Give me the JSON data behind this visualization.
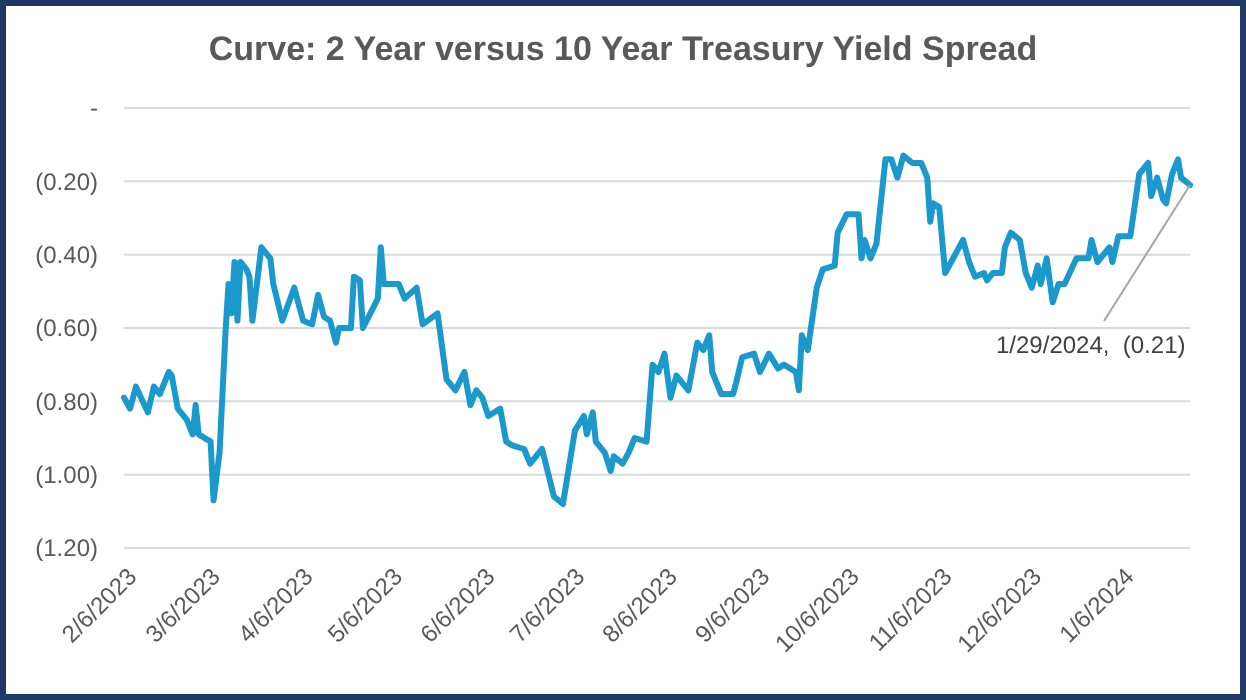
{
  "chart_data": {
    "type": "line",
    "title": "Curve: 2 Year versus 10 Year Treasury Yield Spread",
    "x": [
      "2023-02-06",
      "2023-02-08",
      "2023-02-10",
      "2023-02-14",
      "2023-02-16",
      "2023-02-18",
      "2023-02-21",
      "2023-02-22",
      "2023-02-24",
      "2023-02-27",
      "2023-03-01",
      "2023-03-02",
      "2023-03-03",
      "2023-03-07",
      "2023-03-08",
      "2023-03-10",
      "2023-03-12",
      "2023-03-13",
      "2023-03-14",
      "2023-03-15",
      "2023-03-16",
      "2023-03-17",
      "2023-03-19",
      "2023-03-20",
      "2023-03-21",
      "2023-03-24",
      "2023-03-27",
      "2023-03-28",
      "2023-03-31",
      "2023-04-04",
      "2023-04-07",
      "2023-04-10",
      "2023-04-12",
      "2023-04-14",
      "2023-04-16",
      "2023-04-18",
      "2023-04-19",
      "2023-04-23",
      "2023-04-24",
      "2023-04-26",
      "2023-04-27",
      "2023-05-02",
      "2023-05-03",
      "2023-05-04",
      "2023-05-09",
      "2023-05-11",
      "2023-05-15",
      "2023-05-17",
      "2023-05-22",
      "2023-05-25",
      "2023-05-28",
      "2023-05-31",
      "2023-06-02",
      "2023-06-04",
      "2023-06-06",
      "2023-06-08",
      "2023-06-12",
      "2023-06-14",
      "2023-06-16",
      "2023-06-20",
      "2023-06-22",
      "2023-06-26",
      "2023-06-30",
      "2023-07-03",
      "2023-07-07",
      "2023-07-10",
      "2023-07-11",
      "2023-07-13",
      "2023-07-14",
      "2023-07-17",
      "2023-07-19",
      "2023-07-20",
      "2023-07-23",
      "2023-07-25",
      "2023-07-27",
      "2023-07-31",
      "2023-08-02",
      "2023-08-04",
      "2023-08-06",
      "2023-08-08",
      "2023-08-10",
      "2023-08-14",
      "2023-08-17",
      "2023-08-19",
      "2023-08-21",
      "2023-08-22",
      "2023-08-25",
      "2023-08-29",
      "2023-08-30",
      "2023-09-01",
      "2023-09-05",
      "2023-09-07",
      "2023-09-10",
      "2023-09-13",
      "2023-09-15",
      "2023-09-19",
      "2023-09-20",
      "2023-09-21",
      "2023-09-23",
      "2023-09-26",
      "2023-09-28",
      "2023-10-02",
      "2023-10-03",
      "2023-10-06",
      "2023-10-10",
      "2023-10-11",
      "2023-10-12",
      "2023-10-14",
      "2023-10-16",
      "2023-10-19",
      "2023-10-21",
      "2023-10-23",
      "2023-10-25",
      "2023-10-28",
      "2023-10-31",
      "2023-11-02",
      "2023-11-03",
      "2023-11-04",
      "2023-11-06",
      "2023-11-08",
      "2023-11-10",
      "2023-11-14",
      "2023-11-16",
      "2023-11-18",
      "2023-11-21",
      "2023-11-22",
      "2023-11-24",
      "2023-11-27",
      "2023-11-28",
      "2023-11-30",
      "2023-12-03",
      "2023-12-05",
      "2023-12-07",
      "2023-12-09",
      "2023-12-10",
      "2023-12-12",
      "2023-12-14",
      "2023-12-16",
      "2023-12-18",
      "2023-12-22",
      "2023-12-26",
      "2023-12-27",
      "2023-12-29",
      "2024-01-02",
      "2024-01-03",
      "2024-01-05",
      "2024-01-09",
      "2024-01-12",
      "2024-01-15",
      "2024-01-16",
      "2024-01-18",
      "2024-01-20",
      "2024-01-21",
      "2024-01-23",
      "2024-01-25",
      "2024-01-26",
      "2024-01-29"
    ],
    "series": [
      {
        "color": "#1b98cc",
        "values": [
          -0.79,
          -0.82,
          -0.76,
          -0.83,
          -0.76,
          -0.78,
          -0.72,
          -0.73,
          -0.82,
          -0.85,
          -0.89,
          -0.81,
          -0.89,
          -0.91,
          -1.07,
          -0.94,
          -0.61,
          -0.48,
          -0.56,
          -0.42,
          -0.58,
          -0.42,
          -0.44,
          -0.46,
          -0.58,
          -0.38,
          -0.41,
          -0.48,
          -0.58,
          -0.49,
          -0.58,
          -0.59,
          -0.51,
          -0.57,
          -0.58,
          -0.64,
          -0.6,
          -0.6,
          -0.46,
          -0.47,
          -0.6,
          -0.52,
          -0.38,
          -0.48,
          -0.48,
          -0.52,
          -0.49,
          -0.59,
          -0.56,
          -0.74,
          -0.77,
          -0.72,
          -0.81,
          -0.77,
          -0.79,
          -0.84,
          -0.82,
          -0.91,
          -0.92,
          -0.93,
          -0.97,
          -0.93,
          -1.06,
          -1.08,
          -0.88,
          -0.84,
          -0.89,
          -0.83,
          -0.91,
          -0.94,
          -0.99,
          -0.95,
          -0.97,
          -0.94,
          -0.9,
          -0.91,
          -0.7,
          -0.72,
          -0.67,
          -0.79,
          -0.73,
          -0.77,
          -0.64,
          -0.66,
          -0.62,
          -0.72,
          -0.78,
          -0.78,
          -0.75,
          -0.68,
          -0.67,
          -0.72,
          -0.67,
          -0.71,
          -0.7,
          -0.72,
          -0.77,
          -0.62,
          -0.66,
          -0.49,
          -0.44,
          -0.43,
          -0.34,
          -0.29,
          -0.29,
          -0.41,
          -0.36,
          -0.41,
          -0.37,
          -0.14,
          -0.14,
          -0.19,
          -0.13,
          -0.15,
          -0.15,
          -0.19,
          -0.31,
          -0.26,
          -0.27,
          -0.45,
          -0.42,
          -0.36,
          -0.42,
          -0.46,
          -0.45,
          -0.47,
          -0.45,
          -0.45,
          -0.38,
          -0.34,
          -0.36,
          -0.45,
          -0.49,
          -0.43,
          -0.48,
          -0.41,
          -0.53,
          -0.48,
          -0.48,
          -0.41,
          -0.41,
          -0.36,
          -0.42,
          -0.38,
          -0.42,
          -0.35,
          -0.35,
          -0.18,
          -0.15,
          -0.24,
          -0.19,
          -0.25,
          -0.26,
          -0.18,
          -0.14,
          -0.19,
          -0.21
        ]
      }
    ],
    "xlim": [
      "2023-02-06",
      "2024-01-29"
    ],
    "xticks": [
      {
        "value": "2023-02-06",
        "label": "2/6/2023"
      },
      {
        "value": "2023-03-06",
        "label": "3/6/2023"
      },
      {
        "value": "2023-04-06",
        "label": "4/6/2023"
      },
      {
        "value": "2023-05-06",
        "label": "5/6/2023"
      },
      {
        "value": "2023-06-06",
        "label": "6/6/2023"
      },
      {
        "value": "2023-07-06",
        "label": "7/6/2023"
      },
      {
        "value": "2023-08-06",
        "label": "8/6/2023"
      },
      {
        "value": "2023-09-06",
        "label": "9/6/2023"
      },
      {
        "value": "2023-10-06",
        "label": "10/6/2023"
      },
      {
        "value": "2023-11-06",
        "label": "11/6/2023"
      },
      {
        "value": "2023-12-06",
        "label": "12/6/2023"
      },
      {
        "value": "2024-01-06",
        "label": "1/6/2024"
      }
    ],
    "ylim": [
      -1.2,
      0
    ],
    "yticks": [
      {
        "value": -1.2,
        "label": "(1.20)"
      },
      {
        "value": -1,
        "label": "(1.00)"
      },
      {
        "value": -0.8,
        "label": "(0.80)"
      },
      {
        "value": -0.6,
        "label": "(0.60)"
      },
      {
        "value": -0.4,
        "label": "(0.40)"
      },
      {
        "value": -0.2,
        "label": "(0.20)"
      },
      {
        "value": 0,
        "label": "-"
      }
    ],
    "grid": "y",
    "marker": "none",
    "line_style": "solid",
    "annotations": [
      {
        "text": "1/29/2024,  (0.21)",
        "x": "2024-01-29",
        "y": -0.21
      }
    ]
  }
}
